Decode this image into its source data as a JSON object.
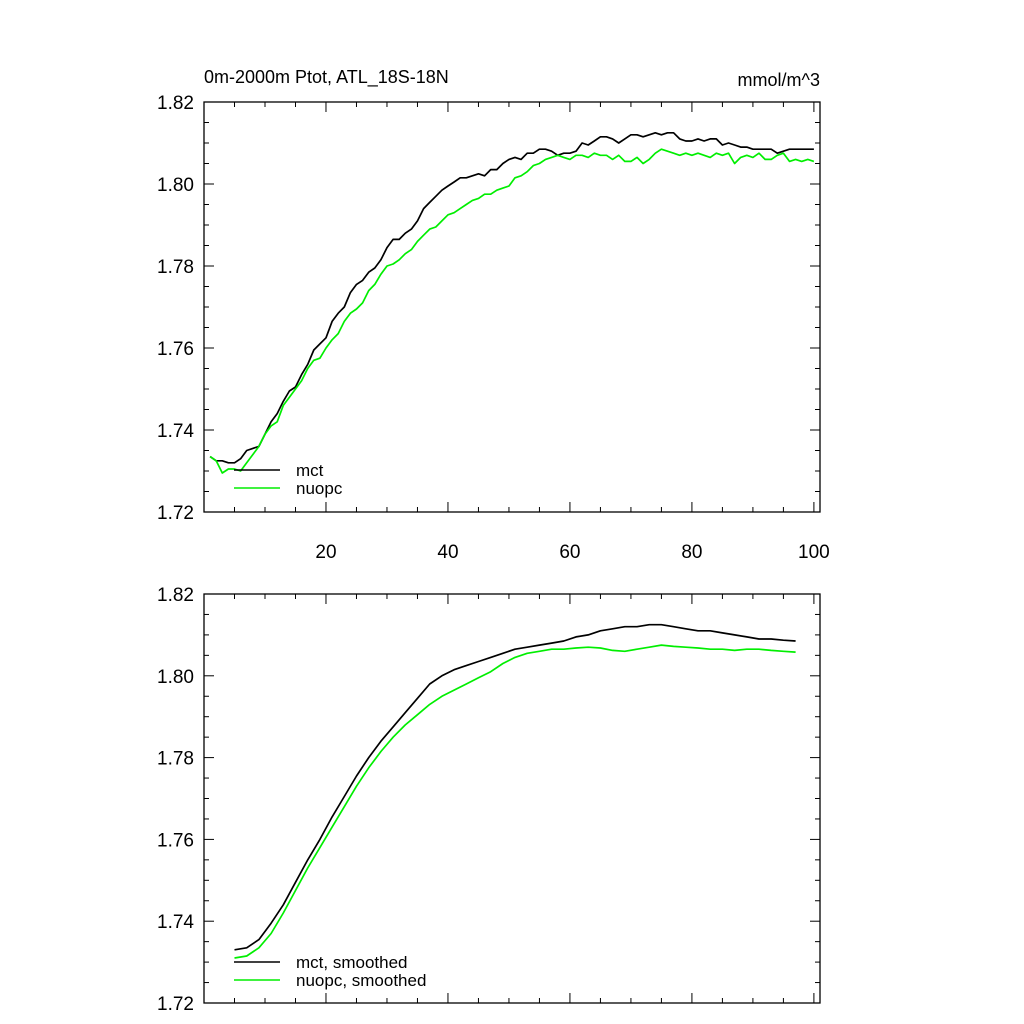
{
  "chart_data": [
    {
      "type": "line",
      "title": "0m-2000m Ptot, ATL_18S-18N",
      "units": "mmol/m^3",
      "xlabel": "",
      "ylabel": "",
      "xlim": [
        0,
        101
      ],
      "ylim": [
        1.72,
        1.82
      ],
      "x_tick_labels": [
        "20",
        "40",
        "60",
        "80",
        "100"
      ],
      "y_tick_labels": [
        "1.72",
        "1.74",
        "1.76",
        "1.78",
        "1.80",
        "1.82"
      ],
      "legend_position": "bottom-left",
      "series": [
        {
          "name": "mct",
          "color": "#000000",
          "x": [
            1,
            2,
            3,
            4,
            5,
            6,
            7,
            8,
            9,
            10,
            11,
            12,
            13,
            14,
            15,
            16,
            17,
            18,
            19,
            20,
            21,
            22,
            23,
            24,
            25,
            26,
            27,
            28,
            29,
            30,
            31,
            32,
            33,
            34,
            35,
            36,
            37,
            38,
            39,
            40,
            41,
            42,
            43,
            44,
            45,
            46,
            47,
            48,
            49,
            50,
            51,
            52,
            53,
            54,
            55,
            56,
            57,
            58,
            59,
            60,
            61,
            62,
            63,
            64,
            65,
            66,
            67,
            68,
            69,
            70,
            71,
            72,
            73,
            74,
            75,
            76,
            77,
            78,
            79,
            80,
            81,
            82,
            83,
            84,
            85,
            86,
            87,
            88,
            89,
            90,
            91,
            92,
            93,
            94,
            95,
            96,
            97,
            98,
            99,
            100
          ],
          "values": [
            1.7335,
            1.7325,
            1.7325,
            1.732,
            1.732,
            1.733,
            1.735,
            1.7355,
            1.736,
            1.739,
            1.742,
            1.744,
            1.747,
            1.7495,
            1.7505,
            1.7535,
            1.756,
            1.7595,
            1.761,
            1.7625,
            1.7665,
            1.7685,
            1.77,
            1.7735,
            1.7755,
            1.7765,
            1.7785,
            1.7795,
            1.7815,
            1.7845,
            1.7865,
            1.7865,
            1.788,
            1.789,
            1.791,
            1.794,
            1.7955,
            1.797,
            1.7985,
            1.7995,
            1.8005,
            1.8015,
            1.8015,
            1.802,
            1.8025,
            1.802,
            1.8035,
            1.8035,
            1.805,
            1.806,
            1.8065,
            1.806,
            1.8075,
            1.8075,
            1.8085,
            1.8085,
            1.808,
            1.807,
            1.8075,
            1.8075,
            1.808,
            1.81,
            1.8095,
            1.8105,
            1.8115,
            1.8115,
            1.811,
            1.81,
            1.811,
            1.812,
            1.812,
            1.8115,
            1.812,
            1.8125,
            1.812,
            1.8125,
            1.8125,
            1.811,
            1.8105,
            1.8105,
            1.811,
            1.8105,
            1.811,
            1.811,
            1.8095,
            1.81,
            1.8095,
            1.809,
            1.809,
            1.8085,
            1.8085,
            1.8085,
            1.8085,
            1.8075,
            1.808,
            1.8085,
            1.8085,
            1.8085,
            1.8085,
            1.8085
          ]
        },
        {
          "name": "nuopc",
          "color": "#00ee00",
          "x": [
            1,
            2,
            3,
            4,
            5,
            6,
            7,
            8,
            9,
            10,
            11,
            12,
            13,
            14,
            15,
            16,
            17,
            18,
            19,
            20,
            21,
            22,
            23,
            24,
            25,
            26,
            27,
            28,
            29,
            30,
            31,
            32,
            33,
            34,
            35,
            36,
            37,
            38,
            39,
            40,
            41,
            42,
            43,
            44,
            45,
            46,
            47,
            48,
            49,
            50,
            51,
            52,
            53,
            54,
            55,
            56,
            57,
            58,
            59,
            60,
            61,
            62,
            63,
            64,
            65,
            66,
            67,
            68,
            69,
            70,
            71,
            72,
            73,
            74,
            75,
            76,
            77,
            78,
            79,
            80,
            81,
            82,
            83,
            84,
            85,
            86,
            87,
            88,
            89,
            90,
            91,
            92,
            93,
            94,
            95,
            96,
            97,
            98,
            99,
            100
          ],
          "values": [
            1.7335,
            1.7325,
            1.7295,
            1.7305,
            1.7305,
            1.73,
            1.732,
            1.734,
            1.736,
            1.739,
            1.741,
            1.742,
            1.746,
            1.748,
            1.75,
            1.752,
            1.755,
            1.757,
            1.7575,
            1.76,
            1.762,
            1.7635,
            1.7665,
            1.7685,
            1.7695,
            1.771,
            1.774,
            1.7755,
            1.778,
            1.78,
            1.7805,
            1.7815,
            1.783,
            1.784,
            1.786,
            1.7875,
            1.789,
            1.7895,
            1.791,
            1.7925,
            1.793,
            1.794,
            1.795,
            1.796,
            1.7965,
            1.7975,
            1.7975,
            1.7985,
            1.799,
            1.7995,
            1.8015,
            1.802,
            1.803,
            1.8045,
            1.805,
            1.806,
            1.8065,
            1.807,
            1.8065,
            1.806,
            1.807,
            1.807,
            1.8065,
            1.8075,
            1.807,
            1.807,
            1.806,
            1.807,
            1.8055,
            1.8055,
            1.8065,
            1.805,
            1.806,
            1.8075,
            1.8085,
            1.808,
            1.8075,
            1.807,
            1.8075,
            1.807,
            1.8075,
            1.807,
            1.8065,
            1.8075,
            1.807,
            1.8075,
            1.805,
            1.8065,
            1.807,
            1.8065,
            1.8075,
            1.806,
            1.806,
            1.807,
            1.8075,
            1.8055,
            1.806,
            1.8055,
            1.806,
            1.8055
          ]
        }
      ]
    },
    {
      "type": "line",
      "title": "",
      "xlabel": "",
      "ylabel": "",
      "xlim": [
        0,
        101
      ],
      "ylim": [
        1.72,
        1.82
      ],
      "y_tick_labels": [
        "1.72",
        "1.74",
        "1.76",
        "1.78",
        "1.80",
        "1.82"
      ],
      "legend_position": "bottom-left",
      "series": [
        {
          "name": "mct, smoothed",
          "color": "#000000",
          "x": [
            5,
            7,
            9,
            11,
            13,
            15,
            17,
            19,
            21,
            23,
            25,
            27,
            29,
            31,
            33,
            35,
            37,
            39,
            41,
            43,
            45,
            47,
            49,
            51,
            53,
            55,
            57,
            59,
            61,
            63,
            65,
            67,
            69,
            71,
            73,
            75,
            77,
            79,
            81,
            83,
            85,
            87,
            89,
            91,
            93,
            95,
            97
          ],
          "values": [
            1.733,
            1.7335,
            1.7355,
            1.7395,
            1.744,
            1.7495,
            1.755,
            1.76,
            1.7655,
            1.7705,
            1.7755,
            1.78,
            1.784,
            1.7875,
            1.791,
            1.7945,
            1.798,
            1.8,
            1.8015,
            1.8025,
            1.8035,
            1.8045,
            1.8055,
            1.8065,
            1.807,
            1.8075,
            1.808,
            1.8085,
            1.8095,
            1.81,
            1.811,
            1.8115,
            1.812,
            1.812,
            1.8125,
            1.8125,
            1.812,
            1.8115,
            1.811,
            1.811,
            1.8105,
            1.81,
            1.8095,
            1.809,
            1.809,
            1.8087,
            1.8085
          ]
        },
        {
          "name": "nuopc, smoothed",
          "color": "#00ee00",
          "x": [
            5,
            7,
            9,
            11,
            13,
            15,
            17,
            19,
            21,
            23,
            25,
            27,
            29,
            31,
            33,
            35,
            37,
            39,
            41,
            43,
            45,
            47,
            49,
            51,
            53,
            55,
            57,
            59,
            61,
            63,
            65,
            67,
            69,
            71,
            73,
            75,
            77,
            79,
            81,
            83,
            85,
            87,
            89,
            91,
            93,
            95,
            97
          ],
          "values": [
            1.731,
            1.7315,
            1.7335,
            1.737,
            1.742,
            1.7475,
            1.753,
            1.758,
            1.763,
            1.768,
            1.773,
            1.7775,
            1.7815,
            1.785,
            1.788,
            1.7905,
            1.793,
            1.795,
            1.7965,
            1.798,
            1.7995,
            1.801,
            1.803,
            1.8045,
            1.8055,
            1.806,
            1.8065,
            1.8065,
            1.8068,
            1.807,
            1.8068,
            1.8062,
            1.806,
            1.8065,
            1.807,
            1.8075,
            1.8072,
            1.807,
            1.8068,
            1.8065,
            1.8065,
            1.8062,
            1.8065,
            1.8065,
            1.8062,
            1.806,
            1.8058
          ]
        }
      ]
    }
  ]
}
